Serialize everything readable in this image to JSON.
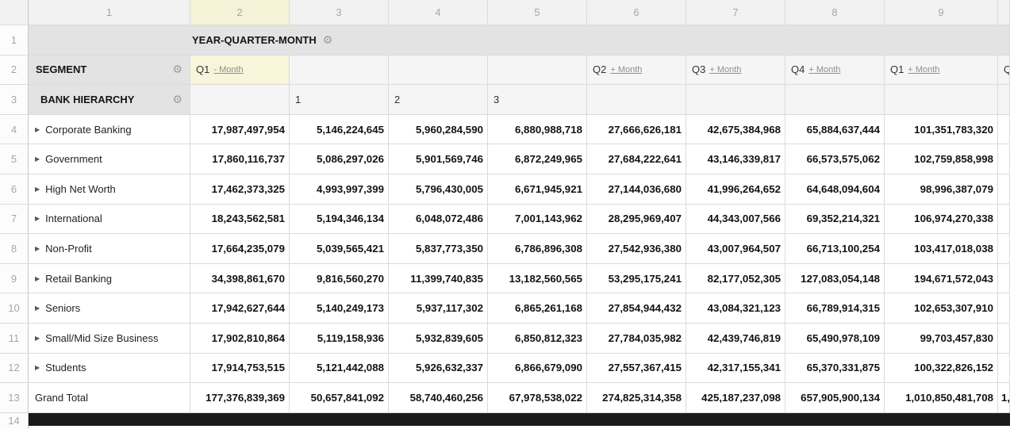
{
  "sheet": {
    "column_headers": [
      "1",
      "2",
      "3",
      "4",
      "5",
      "6",
      "7",
      "8",
      "9"
    ],
    "selected_column": "2",
    "row_numbers": [
      "1",
      "2",
      "3",
      "4",
      "5",
      "6",
      "7",
      "8",
      "9",
      "10",
      "11",
      "12",
      "13",
      "14"
    ]
  },
  "pivot": {
    "columns_field_label": "YEAR-QUARTER-MONTH",
    "segment_field_label": "SEGMENT",
    "hierarchy_field_label": "BANK HIERARCHY",
    "gear_icon": "⚙",
    "expand_icon": "▶",
    "quarter_headers": [
      {
        "label": "Q1",
        "toggle": "- Month",
        "col": 2,
        "selected": true
      },
      {
        "label": "Q2",
        "toggle": "+ Month",
        "col": 6,
        "selected": false
      },
      {
        "label": "Q3",
        "toggle": "+ Month",
        "col": 7,
        "selected": false
      },
      {
        "label": "Q4",
        "toggle": "+ Month",
        "col": 8,
        "selected": false
      },
      {
        "label": "Q1",
        "toggle": "+ Month",
        "col": 9,
        "selected": false
      },
      {
        "label": "Q",
        "toggle": "",
        "col": 10,
        "selected": false
      }
    ],
    "month_headers": [
      {
        "label": "1",
        "col": 3
      },
      {
        "label": "2",
        "col": 4
      },
      {
        "label": "3",
        "col": 5
      }
    ],
    "data_rows": [
      {
        "label": "Corporate Banking",
        "values": [
          "17,987,497,954",
          "5,146,224,645",
          "5,960,284,590",
          "6,880,988,718",
          "27,666,626,181",
          "42,675,384,968",
          "65,884,637,444",
          "101,351,783,320"
        ]
      },
      {
        "label": "Government",
        "values": [
          "17,860,116,737",
          "5,086,297,026",
          "5,901,569,746",
          "6,872,249,965",
          "27,684,222,641",
          "43,146,339,817",
          "66,573,575,062",
          "102,759,858,998"
        ]
      },
      {
        "label": "High Net Worth",
        "values": [
          "17,462,373,325",
          "4,993,997,399",
          "5,796,430,005",
          "6,671,945,921",
          "27,144,036,680",
          "41,996,264,652",
          "64,648,094,604",
          "98,996,387,079"
        ]
      },
      {
        "label": "International",
        "values": [
          "18,243,562,581",
          "5,194,346,134",
          "6,048,072,486",
          "7,001,143,962",
          "28,295,969,407",
          "44,343,007,566",
          "69,352,214,321",
          "106,974,270,338"
        ]
      },
      {
        "label": "Non-Profit",
        "values": [
          "17,664,235,079",
          "5,039,565,421",
          "5,837,773,350",
          "6,786,896,308",
          "27,542,936,380",
          "43,007,964,507",
          "66,713,100,254",
          "103,417,018,038"
        ]
      },
      {
        "label": "Retail Banking",
        "values": [
          "34,398,861,670",
          "9,816,560,270",
          "11,399,740,835",
          "13,182,560,565",
          "53,295,175,241",
          "82,177,052,305",
          "127,083,054,148",
          "194,671,572,043"
        ]
      },
      {
        "label": "Seniors",
        "values": [
          "17,942,627,644",
          "5,140,249,173",
          "5,937,117,302",
          "6,865,261,168",
          "27,854,944,432",
          "43,084,321,123",
          "66,789,914,315",
          "102,653,307,910"
        ]
      },
      {
        "label": "Small/Mid Size Business",
        "values": [
          "17,902,810,864",
          "5,119,158,936",
          "5,932,839,605",
          "6,850,812,323",
          "27,784,035,982",
          "42,439,746,819",
          "65,490,978,109",
          "99,703,457,830"
        ]
      },
      {
        "label": "Students",
        "values": [
          "17,914,753,515",
          "5,121,442,088",
          "5,926,632,337",
          "6,866,679,090",
          "27,557,367,415",
          "42,317,155,341",
          "65,370,331,875",
          "100,322,826,152"
        ]
      }
    ],
    "grand_total_row": {
      "label": "Grand Total",
      "values": [
        "177,376,839,369",
        "50,657,841,092",
        "58,740,460,256",
        "67,978,538,022",
        "274,825,314,358",
        "425,187,237,098",
        "657,905,900,134",
        "1,010,850,481,708"
      ],
      "overflow_fragment": "1,"
    },
    "colors": {
      "selected_cell_bg": "#f8f5da",
      "field_band_bg": "#e3e3e3",
      "header_strip_bg": "#f2f2f2",
      "scrollbar_bg": "#191919"
    }
  }
}
